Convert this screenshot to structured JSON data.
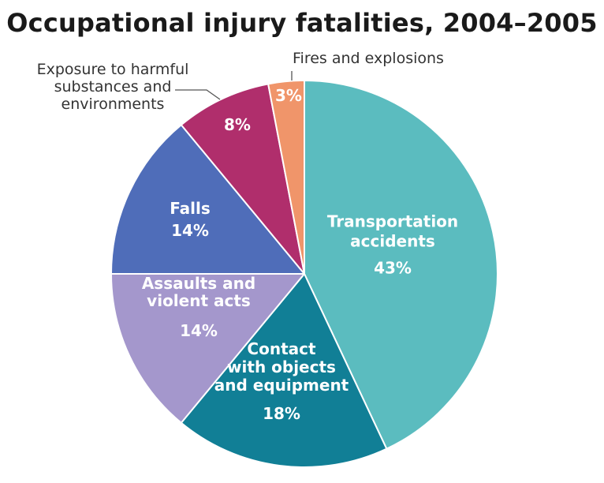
{
  "chart_data": {
    "type": "pie",
    "title": "Occupational injury fatalities, 2004–2005",
    "unit": "%",
    "slices": [
      {
        "name": "Transportation accidents",
        "label_lines": [
          "Transportation",
          "accidents"
        ],
        "value": 43,
        "value_label": "43%",
        "color": "#5bbcbf"
      },
      {
        "name": "Contact with objects and equipment",
        "label_lines": [
          "Contact",
          "with objects",
          "and equipment"
        ],
        "value": 18,
        "value_label": "18%",
        "color": "#117f96"
      },
      {
        "name": "Assaults and violent acts",
        "label_lines": [
          "Assaults and",
          "violent acts"
        ],
        "value": 14,
        "value_label": "14%",
        "color": "#a497cc"
      },
      {
        "name": "Falls",
        "label_lines": [
          "Falls"
        ],
        "value": 14,
        "value_label": "14%",
        "color": "#4f6db9"
      },
      {
        "name": "Exposure to harmful substances and environments",
        "label_lines": [
          "Exposure to harmful",
          "substances and",
          "environments"
        ],
        "value": 8,
        "value_label": "8%",
        "color": "#b02e6c"
      },
      {
        "name": "Fires and explosions",
        "label_lines": [
          "Fires and explosions"
        ],
        "value": 3,
        "value_label": "3%",
        "color": "#f0956a"
      }
    ]
  }
}
